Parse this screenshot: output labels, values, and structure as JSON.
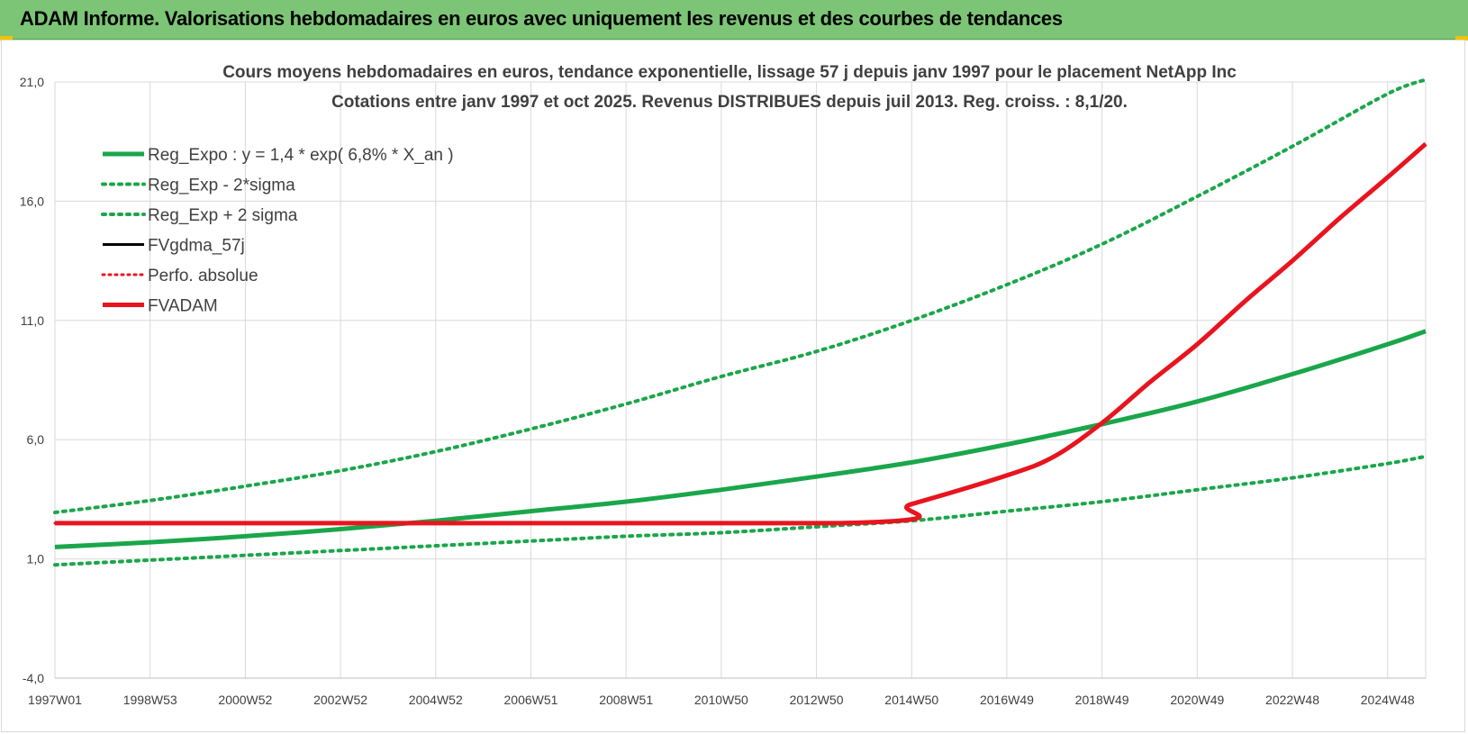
{
  "banner": {
    "title": "ADAM Informe. Valorisations hebdomadaires en euros avec uniquement les revenus et des courbes de tendances"
  },
  "colors": {
    "banner_bg": "#7cc576",
    "green": "#1aa64a",
    "red": "#e8141e",
    "black": "#000000",
    "grid": "#d9d9d9",
    "corner": "#f2c200"
  },
  "chart_data": {
    "type": "line",
    "title": "Cours moyens hebdomadaires en euros, tendance exponentielle, lissage 57 j depuis janv 1997 pour le placement NetApp Inc",
    "subtitle": "Cotations entre janv 1997 et oct 2025. Revenus DISTRIBUES depuis juil 2013. Reg. croiss. : 8,1/20.",
    "xlabel": "",
    "ylabel": "",
    "ylim": [
      -4,
      21
    ],
    "xlim": [
      1997.0,
      2025.8
    ],
    "y_ticks": [
      "-4,0",
      "1,0",
      "6,0",
      "11,0",
      "16,0",
      "21,0"
    ],
    "y_tick_values": [
      -4,
      1,
      6,
      11,
      16,
      21
    ],
    "x_ticks": [
      "1997W01",
      "1998W53",
      "2000W52",
      "2002W52",
      "2004W52",
      "2006W51",
      "2008W51",
      "2010W50",
      "2012W50",
      "2014W50",
      "2016W49",
      "2018W49",
      "2020W49",
      "2022W48",
      "2024W48"
    ],
    "x_tick_values": [
      1997.0,
      1999.0,
      2001.0,
      2003.0,
      2005.0,
      2007.0,
      2009.0,
      2011.0,
      2013.0,
      2015.0,
      2017.0,
      2019.0,
      2021.0,
      2023.0,
      2025.0
    ],
    "grid": true,
    "legend_position": "top-left",
    "series": [
      {
        "name": "Reg_Expo : y = 1,4 * exp( 6,8% *  X_an )",
        "style": "solid",
        "color": "#1aa64a",
        "width": 5,
        "x": [
          1997.0,
          1999.0,
          2001.0,
          2003.0,
          2005.0,
          2007.0,
          2009.0,
          2011.0,
          2013.0,
          2015.0,
          2017.0,
          2019.0,
          2021.0,
          2023.0,
          2025.0,
          2025.8
        ],
        "values": [
          1.5,
          1.7,
          1.95,
          2.25,
          2.6,
          3.0,
          3.4,
          3.9,
          4.45,
          5.05,
          5.8,
          6.65,
          7.6,
          8.75,
          10.0,
          10.55
        ]
      },
      {
        "name": "Reg_Exp - 2*sigma",
        "style": "dotted",
        "color": "#1aa64a",
        "width": 4,
        "x": [
          1997.0,
          1999.0,
          2001.0,
          2003.0,
          2005.0,
          2007.0,
          2009.0,
          2011.0,
          2013.0,
          2015.0,
          2017.0,
          2019.0,
          2021.0,
          2023.0,
          2025.0,
          2025.8
        ],
        "values": [
          0.75,
          0.95,
          1.15,
          1.35,
          1.55,
          1.75,
          1.95,
          2.1,
          2.35,
          2.6,
          3.0,
          3.4,
          3.9,
          4.4,
          5.0,
          5.3
        ]
      },
      {
        "name": "Reg_Exp + 2 sigma",
        "style": "dotted",
        "color": "#1aa64a",
        "width": 4,
        "x": [
          1997.0,
          1999.0,
          2001.0,
          2003.0,
          2005.0,
          2007.0,
          2009.0,
          2011.0,
          2013.0,
          2015.0,
          2017.0,
          2019.0,
          2021.0,
          2023.0,
          2025.0,
          2025.8
        ],
        "values": [
          2.95,
          3.45,
          4.05,
          4.7,
          5.5,
          6.45,
          7.5,
          8.65,
          9.7,
          11.0,
          12.5,
          14.2,
          16.2,
          18.3,
          20.5,
          21.1
        ]
      },
      {
        "name": "FVgdma_57j",
        "style": "solid",
        "color": "#000000",
        "width": 3,
        "x": [
          1997.0,
          2013.5,
          2015.0,
          2017.0,
          2018.0,
          2019.0,
          2020.0,
          2021.0,
          2022.0,
          2023.0,
          2024.0,
          2025.0,
          2025.8
        ],
        "values": [
          2.5,
          2.5,
          3.3,
          4.5,
          5.3,
          6.7,
          8.4,
          10.0,
          11.8,
          13.5,
          15.3,
          17.0,
          18.4
        ]
      },
      {
        "name": "Perfo. absolue",
        "style": "dotted",
        "color": "#e8141e",
        "width": 3,
        "x": [
          1997.0,
          2013.5,
          2015.0,
          2017.0,
          2018.0,
          2019.0,
          2020.0,
          2021.0,
          2022.0,
          2023.0,
          2024.0,
          2025.0,
          2025.8
        ],
        "values": [
          2.5,
          2.5,
          3.3,
          4.5,
          5.3,
          6.7,
          8.4,
          10.0,
          11.8,
          13.5,
          15.3,
          17.0,
          18.4
        ]
      },
      {
        "name": "FVADAM",
        "style": "solid",
        "color": "#e8141e",
        "width": 5,
        "x": [
          1997.0,
          2013.5,
          2015.0,
          2017.0,
          2018.0,
          2019.0,
          2020.0,
          2021.0,
          2022.0,
          2023.0,
          2024.0,
          2025.0,
          2025.8
        ],
        "values": [
          2.5,
          2.5,
          3.3,
          4.5,
          5.3,
          6.7,
          8.4,
          10.0,
          11.8,
          13.5,
          15.3,
          17.0,
          18.4
        ]
      }
    ]
  }
}
